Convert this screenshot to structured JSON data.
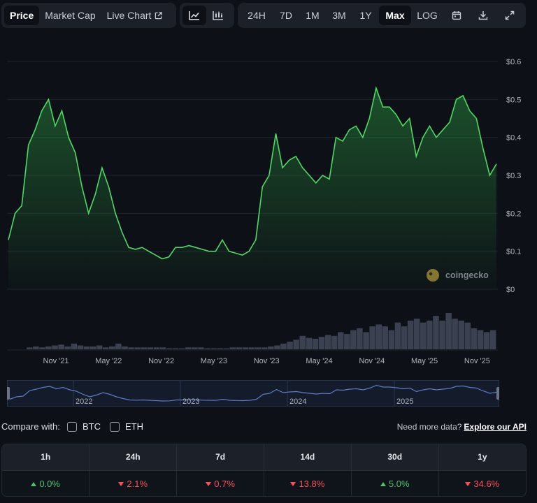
{
  "toolbar": {
    "view_tabs": [
      "Price",
      "Market Cap",
      "Live Chart"
    ],
    "active_view": "Price",
    "chart_type_icons": [
      "line-chart-icon",
      "candlestick-chart-icon"
    ],
    "ranges": [
      "24H",
      "7D",
      "1M",
      "3M",
      "1Y",
      "Max",
      "LOG"
    ],
    "active_range": "Max",
    "tool_icons": [
      "calendar-icon",
      "download-icon",
      "expand-icon"
    ]
  },
  "watermark": "coingecko",
  "colors": {
    "line": "#4cd964",
    "volume": "#3b4150",
    "navigator_line": "#5b7bc7",
    "up": "#4cc46c",
    "down": "#ff4d5a"
  },
  "chart_data": {
    "type": "area",
    "y_ticks": [
      "$0.6",
      "$0.5",
      "$0.4",
      "$0.3",
      "$0.2",
      "$0.1",
      "$0"
    ],
    "ylim": [
      0,
      0.6
    ],
    "x_ticks": [
      "Nov '21",
      "May '22",
      "Nov '22",
      "May '23",
      "Nov '23",
      "May '24",
      "Nov '24",
      "May '25",
      "Nov '25"
    ],
    "series": [
      {
        "values": [
          0.13,
          0.2,
          0.22,
          0.38,
          0.42,
          0.47,
          0.5,
          0.43,
          0.47,
          0.4,
          0.36,
          0.27,
          0.2,
          0.25,
          0.32,
          0.27,
          0.2,
          0.15,
          0.11,
          0.105,
          0.11,
          0.1,
          0.09,
          0.08,
          0.085,
          0.11,
          0.11,
          0.115,
          0.11,
          0.105,
          0.1,
          0.1,
          0.13,
          0.1,
          0.095,
          0.09,
          0.1,
          0.13,
          0.27,
          0.3,
          0.41,
          0.32,
          0.34,
          0.35,
          0.32,
          0.3,
          0.28,
          0.3,
          0.29,
          0.4,
          0.39,
          0.42,
          0.43,
          0.4,
          0.45,
          0.53,
          0.48,
          0.48,
          0.46,
          0.43,
          0.45,
          0.35,
          0.4,
          0.43,
          0.4,
          0.42,
          0.44,
          0.5,
          0.51,
          0.47,
          0.45,
          0.37,
          0.3,
          0.33
        ]
      }
    ],
    "volume": [
      2,
      3,
      2,
      3,
      4,
      5,
      3,
      6,
      4,
      3,
      3,
      4,
      2,
      3,
      6,
      3,
      2,
      2,
      2,
      2,
      2,
      2,
      1,
      1,
      1,
      2,
      2,
      2,
      1,
      1,
      1,
      1,
      2,
      2,
      2,
      2,
      2,
      2,
      3,
      4,
      6,
      8,
      10,
      14,
      12,
      11,
      13,
      15,
      14,
      18,
      16,
      20,
      22,
      18,
      24,
      26,
      24,
      20,
      28,
      24,
      30,
      32,
      28,
      30,
      35,
      30,
      38,
      32,
      30,
      28,
      22,
      20,
      18,
      20
    ],
    "navigator_ticks": [
      "2022",
      "2023",
      "2024",
      "2025"
    ]
  },
  "compare": {
    "label": "Compare with:",
    "options": [
      "BTC",
      "ETH"
    ],
    "api_prompt": "Need more data?",
    "api_link": "Explore our API"
  },
  "performance": {
    "headers": [
      "1h",
      "24h",
      "7d",
      "14d",
      "30d",
      "1y"
    ],
    "values": [
      {
        "text": "0.0%",
        "direction": "up"
      },
      {
        "text": "2.1%",
        "direction": "down"
      },
      {
        "text": "0.7%",
        "direction": "down"
      },
      {
        "text": "13.8%",
        "direction": "down"
      },
      {
        "text": "5.0%",
        "direction": "up"
      },
      {
        "text": "34.6%",
        "direction": "down"
      }
    ]
  }
}
